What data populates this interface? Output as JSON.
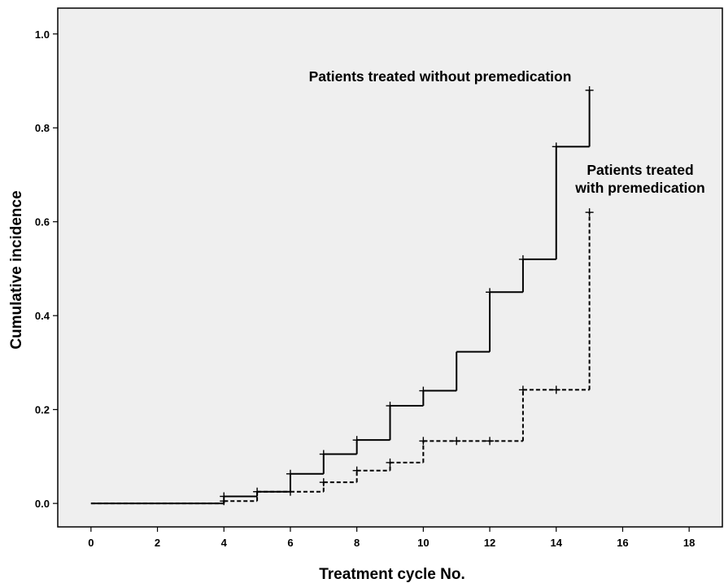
{
  "chart_data": {
    "type": "line",
    "step": true,
    "xlabel": "Treatment cycle No.",
    "ylabel": "Cumulative incidence",
    "xlim": [
      -1.0,
      19.0
    ],
    "ylim": [
      -0.05,
      1.055
    ],
    "xticks": [
      0,
      2,
      4,
      6,
      8,
      10,
      12,
      14,
      16,
      18
    ],
    "yticks": [
      0.0,
      0.2,
      0.4,
      0.6,
      0.8,
      1.0
    ],
    "ytick_labels": [
      "0.0",
      "0.2",
      "0.4",
      "0.6",
      "0.8",
      "1.0"
    ],
    "plot_background": "#efefef",
    "grid": false,
    "series": [
      {
        "line_style": "solid",
        "color": "#000000",
        "x": [
          0,
          4,
          5,
          6,
          7,
          8,
          9,
          10,
          11,
          12,
          13,
          14,
          15
        ],
        "y": [
          0.0,
          0.015,
          0.025,
          0.063,
          0.105,
          0.135,
          0.208,
          0.24,
          0.323,
          0.45,
          0.52,
          0.76,
          0.88
        ],
        "censor_marks": [
          {
            "x": 4,
            "y": 0.015
          },
          {
            "x": 5,
            "y": 0.025
          },
          {
            "x": 6,
            "y": 0.063
          },
          {
            "x": 7,
            "y": 0.105
          },
          {
            "x": 8,
            "y": 0.135
          },
          {
            "x": 9,
            "y": 0.208
          },
          {
            "x": 10,
            "y": 0.24
          },
          {
            "x": 12,
            "y": 0.45
          },
          {
            "x": 13,
            "y": 0.52
          },
          {
            "x": 14,
            "y": 0.76
          },
          {
            "x": 15,
            "y": 0.88
          }
        ]
      },
      {
        "line_style": "dashed",
        "color": "#000000",
        "x": [
          0,
          4,
          5,
          6,
          7,
          8,
          9,
          10,
          13,
          15
        ],
        "y": [
          0.0,
          0.005,
          0.025,
          0.025,
          0.045,
          0.07,
          0.087,
          0.133,
          0.242,
          0.62
        ],
        "censor_marks": [
          {
            "x": 4,
            "y": 0.005
          },
          {
            "x": 6,
            "y": 0.025
          },
          {
            "x": 7,
            "y": 0.045
          },
          {
            "x": 8,
            "y": 0.07
          },
          {
            "x": 9,
            "y": 0.087
          },
          {
            "x": 10,
            "y": 0.133
          },
          {
            "x": 11,
            "y": 0.133
          },
          {
            "x": 12,
            "y": 0.133
          },
          {
            "x": 13,
            "y": 0.242
          },
          {
            "x": 14,
            "y": 0.242
          },
          {
            "x": 15,
            "y": 0.62
          }
        ]
      }
    ],
    "annotations": [
      {
        "lines": [
          "Patients treated without premedication"
        ],
        "series": 0
      },
      {
        "lines": [
          "Patients treated",
          "with premedication"
        ],
        "series": 1
      }
    ]
  }
}
